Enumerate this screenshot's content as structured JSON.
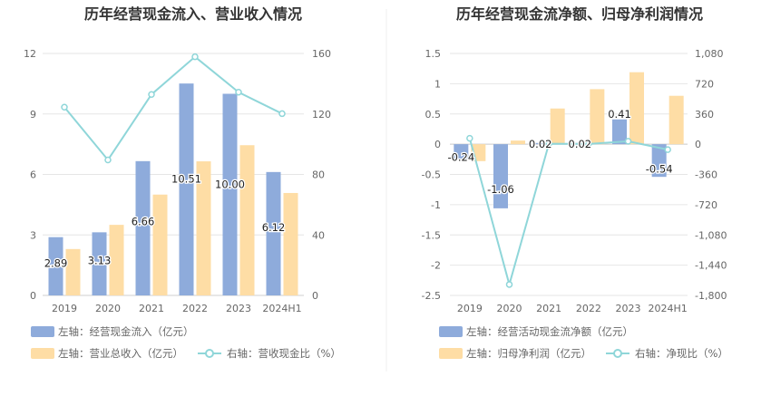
{
  "chart_data": [
    {
      "type": "bar",
      "title": "历年经营现金流入、营业收入情况",
      "categories": [
        "2019",
        "2020",
        "2021",
        "2022",
        "2023",
        "2024H1"
      ],
      "left_axis": {
        "ylim": [
          0,
          12
        ],
        "ticks": [
          "0",
          "3",
          "6",
          "9",
          "12"
        ]
      },
      "right_axis": {
        "ylim": [
          0,
          160
        ],
        "ticks": [
          "0",
          "40",
          "80",
          "120",
          "160"
        ]
      },
      "series": [
        {
          "name": "左轴：经营现金流入（亿元）",
          "axis": "left",
          "kind": "bar",
          "color": "#8eabdb",
          "values": [
            2.89,
            3.13,
            6.66,
            10.51,
            10.0,
            6.12
          ],
          "labels": [
            "2.89",
            "3.13",
            "6.66",
            "10.51",
            "10.00",
            "6.12"
          ]
        },
        {
          "name": "左轴：营业总收入（亿元）",
          "axis": "left",
          "kind": "bar",
          "color": "#fedda5",
          "values": [
            2.3,
            3.5,
            5.0,
            6.65,
            7.45,
            5.08
          ]
        },
        {
          "name": "右轴：营收现金比（%）",
          "axis": "right",
          "kind": "line",
          "color": "#8fd6d9",
          "values": [
            124.5,
            89.6,
            132.9,
            157.8,
            134.4,
            120.2
          ]
        }
      ]
    },
    {
      "type": "bar",
      "title": "历年经营现金流净额、归母净利润情况",
      "categories": [
        "2019",
        "2020",
        "2021",
        "2022",
        "2023",
        "2024H1"
      ],
      "left_axis": {
        "ylim": [
          -2.5,
          1.5
        ],
        "ticks": [
          "1.5",
          "1",
          "0.5",
          "0",
          "-0.5",
          "-1",
          "-1.5",
          "-2",
          "-2.5"
        ]
      },
      "right_axis": {
        "ylim": [
          -1800,
          1080
        ],
        "ticks": [
          "1,080",
          "720",
          "360",
          "0",
          "-360",
          "-720",
          "-1,080",
          "-1,440",
          "-1,800"
        ]
      },
      "series": [
        {
          "name": "左轴：经营活动现金流净额（亿元）",
          "axis": "left",
          "kind": "bar",
          "color": "#8eabdb",
          "values": [
            -0.24,
            -1.06,
            0.02,
            0.02,
            0.41,
            -0.54
          ],
          "labels": [
            "-0.24",
            "-1.06",
            "0.02",
            "0.02",
            "0.41",
            "-0.54"
          ]
        },
        {
          "name": "左轴：归母净利润（亿元）",
          "axis": "left",
          "kind": "bar",
          "color": "#fedda5",
          "values": [
            -0.28,
            0.06,
            0.59,
            0.91,
            1.19,
            0.8
          ]
        },
        {
          "name": "右轴：净现比（%）",
          "axis": "right",
          "kind": "line",
          "color": "#8fd6d9",
          "values": [
            70,
            -1670,
            5,
            3,
            35,
            -65
          ]
        }
      ]
    }
  ]
}
